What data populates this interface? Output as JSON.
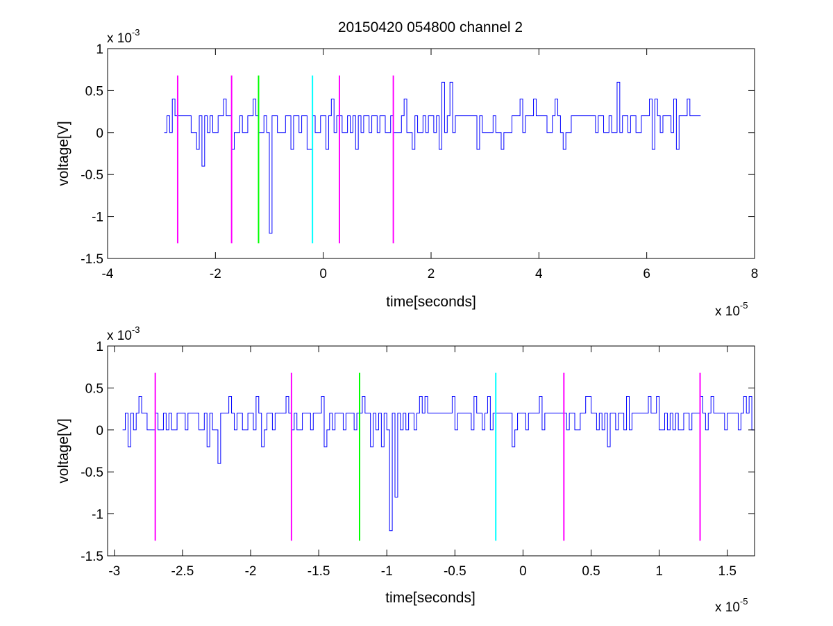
{
  "chart_data": [
    {
      "type": "line",
      "title": "20150420 054800 channel 2",
      "xlabel": "time[seconds]",
      "ylabel": "voltage[V]",
      "x_scale_label": "x 10",
      "x_scale_exponent": "-5",
      "y_scale_label": "x 10",
      "y_scale_exponent": "-3",
      "xlim": [
        -4,
        8
      ],
      "ylim": [
        -1.5,
        1
      ],
      "xticks": [
        -4,
        -2,
        0,
        2,
        4,
        6,
        8
      ],
      "yticks": [
        -1.5,
        -1,
        -0.5,
        0,
        0.5,
        1
      ],
      "xtick_labels": [
        "-4",
        "-2",
        "0",
        "2",
        "4",
        "6",
        "8"
      ],
      "ytick_labels": [
        "-1.5",
        "-1",
        "-0.5",
        "0",
        "0.5",
        "1"
      ],
      "grid": false,
      "signal": {
        "color": "#0000ff",
        "x_range": [
          -2.95,
          7.0
        ],
        "levels": [
          0,
          0.2,
          0.4
        ],
        "sample_step": 0.05,
        "features": [
          {
            "x": -2.8,
            "y": 0.4
          },
          {
            "x": -2.35,
            "y": -0.2
          },
          {
            "x": -2.25,
            "y": -0.4
          },
          {
            "x": -1.7,
            "y": -0.2
          },
          {
            "x": -1.3,
            "y": 0.4
          },
          {
            "x": -1.0,
            "y": -1.2
          },
          {
            "x": -0.6,
            "y": -0.2
          },
          {
            "x": 0.6,
            "y": -0.2
          },
          {
            "x": 2.15,
            "y": -0.2
          },
          {
            "x": 2.35,
            "y": 0.6
          },
          {
            "x": 2.2,
            "y": 0.6
          },
          {
            "x": 3.3,
            "y": -0.2
          },
          {
            "x": 5.45,
            "y": 0.6
          },
          {
            "x": 6.55,
            "y": -0.2
          }
        ]
      },
      "markers": [
        {
          "x": -2.7,
          "color": "#ff00ff"
        },
        {
          "x": -1.7,
          "color": "#ff00ff"
        },
        {
          "x": -1.2,
          "color": "#00ff00"
        },
        {
          "x": -0.2,
          "color": "#00ffff"
        },
        {
          "x": 0.3,
          "color": "#ff00ff"
        },
        {
          "x": 1.3,
          "color": "#ff00ff"
        }
      ],
      "marker_range": [
        -1.32,
        0.68
      ]
    },
    {
      "type": "line",
      "title": "",
      "xlabel": "time[seconds]",
      "ylabel": "voltage[V]",
      "x_scale_label": "x 10",
      "x_scale_exponent": "-5",
      "y_scale_label": "x 10",
      "y_scale_exponent": "-3",
      "xlim": [
        -3.05,
        1.7
      ],
      "ylim": [
        -1.5,
        1
      ],
      "xticks": [
        -3,
        -2.5,
        -2,
        -1.5,
        -1,
        -0.5,
        0,
        0.5,
        1,
        1.5
      ],
      "yticks": [
        -1.5,
        -1,
        -0.5,
        0,
        0.5,
        1
      ],
      "xtick_labels": [
        "-3",
        "-2.5",
        "-2",
        "-1.5",
        "-1",
        "-0.5",
        "0",
        "0.5",
        "1",
        "1.5"
      ],
      "ytick_labels": [
        "-1.5",
        "-1",
        "-0.5",
        "0",
        "0.5",
        "1"
      ],
      "grid": false,
      "signal": {
        "color": "#0000ff",
        "x_range": [
          -2.95,
          1.7
        ],
        "levels": [
          0,
          0.2,
          0.4
        ],
        "sample_step": 0.02,
        "features": [
          {
            "x": -2.93,
            "y": 0.2
          },
          {
            "x": -2.9,
            "y": -0.2
          },
          {
            "x": -2.83,
            "y": 0.4
          },
          {
            "x": -2.25,
            "y": -0.4
          },
          {
            "x": -2.33,
            "y": -0.2
          },
          {
            "x": -1.97,
            "y": 0.4
          },
          {
            "x": -1.75,
            "y": 0.4
          },
          {
            "x": -1.48,
            "y": 0.4
          },
          {
            "x": -1.04,
            "y": -0.2
          },
          {
            "x": -0.98,
            "y": -1.2
          },
          {
            "x": -0.95,
            "y": -0.8
          },
          {
            "x": -0.76,
            "y": 0.4
          },
          {
            "x": -0.52,
            "y": 0.4
          },
          {
            "x": -0.26,
            "y": 0.4
          },
          {
            "x": 0.12,
            "y": 0.4
          },
          {
            "x": 0.45,
            "y": 0.4
          },
          {
            "x": 0.62,
            "y": -0.2
          },
          {
            "x": 0.92,
            "y": 0.4
          },
          {
            "x": 1.3,
            "y": 0.4
          },
          {
            "x": 1.37,
            "y": 0.4
          },
          {
            "x": 1.62,
            "y": 0.4
          }
        ]
      },
      "markers": [
        {
          "x": -2.7,
          "color": "#ff00ff"
        },
        {
          "x": -1.7,
          "color": "#ff00ff"
        },
        {
          "x": -1.2,
          "color": "#00ff00"
        },
        {
          "x": -0.2,
          "color": "#00ffff"
        },
        {
          "x": 0.3,
          "color": "#ff00ff"
        },
        {
          "x": 1.3,
          "color": "#ff00ff"
        }
      ],
      "marker_range": [
        -1.32,
        0.68
      ]
    }
  ]
}
